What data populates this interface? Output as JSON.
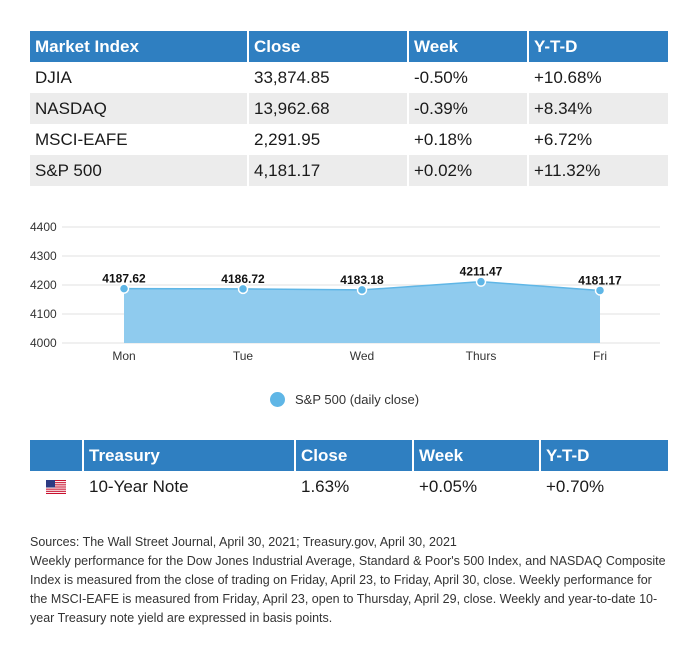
{
  "market_table": {
    "headers": [
      "Market Index",
      "Close",
      "Week",
      "Y-T-D"
    ],
    "rows": [
      [
        "DJIA",
        "33,874.85",
        "-0.50%",
        "+10.68%"
      ],
      [
        "NASDAQ",
        "13,962.68",
        "-0.39%",
        "+8.34%"
      ],
      [
        "MSCI-EAFE",
        "2,291.95",
        "+0.18%",
        "+6.72%"
      ],
      [
        "S&P 500",
        "4,181.17",
        "+0.02%",
        "+11.32%"
      ]
    ]
  },
  "chart_data": {
    "type": "area",
    "categories": [
      "Mon",
      "Tue",
      "Wed",
      "Thurs",
      "Fri"
    ],
    "series": [
      {
        "name": "S&P 500 (daily close)",
        "values": [
          4187.62,
          4186.72,
          4183.18,
          4211.47,
          4181.17
        ]
      }
    ],
    "data_labels": [
      "4187.62",
      "4186.72",
      "4183.18",
      "4211.47",
      "4181.17"
    ],
    "yticks": [
      "4400",
      "4300",
      "4200",
      "4100",
      "4000"
    ],
    "ylim": [
      4000,
      4400
    ],
    "grid": true,
    "legend_position": "bottom-center",
    "colors": {
      "fill": "#8fcbee",
      "line": "#5fb6e6",
      "marker": "#5fb6e6"
    }
  },
  "legend": {
    "label": "S&P 500 (daily close)"
  },
  "treasury_table": {
    "headers": [
      "",
      "Treasury",
      "Close",
      "Week",
      "Y-T-D"
    ],
    "row": {
      "flag": "us-flag-icon",
      "name": "10-Year Note",
      "close": "1.63%",
      "week": "+0.05%",
      "ytd": "+0.70%"
    }
  },
  "notes": {
    "sources": "Sources: The Wall Street Journal, April 30, 2021; Treasury.gov, April 30, 2021",
    "body": "Weekly performance for the Dow Jones Industrial Average, Standard & Poor's 500 Index, and NASDAQ Composite Index is measured from the close of trading on Friday, April 23, to Friday, April 30, close. Weekly performance for the MSCI-EAFE is measured from Friday, April 23, open to Thursday, April 29, close. Weekly and year-to-date 10-year Treasury note yield are expressed in basis points."
  },
  "colors": {
    "header_bg": "#2f7fc1",
    "stripe": "#ececec"
  }
}
